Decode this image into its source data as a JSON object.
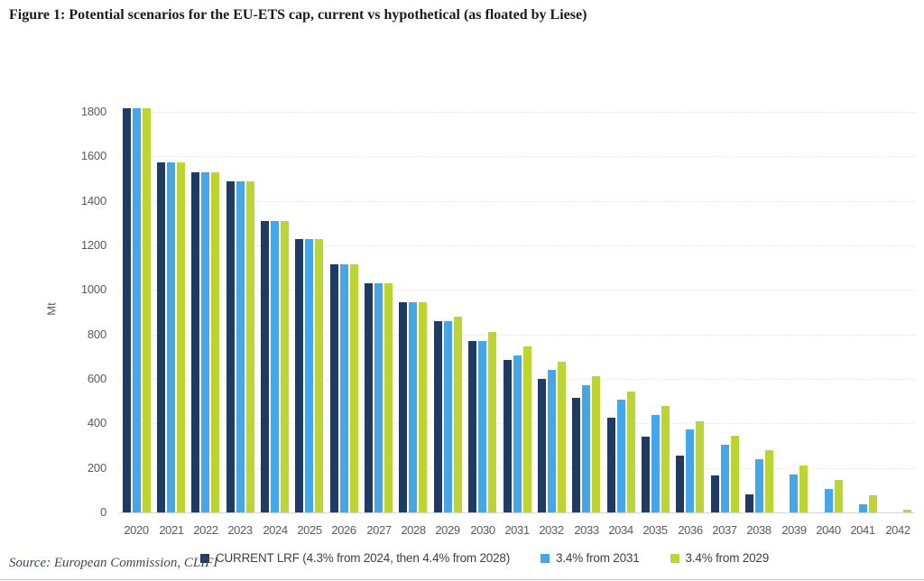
{
  "figure_title": "Figure 1: Potential scenarios for the EU-ETS cap, current vs hypothetical (as floated by Liese)",
  "source_note": "Source: European Commission, CLIFI",
  "colors": {
    "navy": "#1f3a63",
    "light_blue": "#45a7e8",
    "green": "#bcd532",
    "grid": "#e7e7e7",
    "axis_text": "#5a5a5a",
    "title_text": "#1b1b1b",
    "source_text": "#3d4a57"
  },
  "chart_data": {
    "type": "bar",
    "title": "Figure 1: Potential scenarios for the EU-ETS cap, current vs hypothetical (as floated by Liese)",
    "xlabel": "",
    "ylabel": "Mt",
    "ylim": [
      0,
      1800
    ],
    "ytick_step": 200,
    "yticks": [
      0,
      200,
      400,
      600,
      800,
      1000,
      1200,
      1400,
      1600,
      1800
    ],
    "grid": "horizontal-dotted",
    "legend_position": "bottom",
    "categories": [
      2020,
      2021,
      2022,
      2023,
      2024,
      2025,
      2026,
      2027,
      2028,
      2029,
      2030,
      2031,
      2032,
      2033,
      2034,
      2035,
      2036,
      2037,
      2038,
      2039,
      2040,
      2041,
      2042
    ],
    "series": [
      {
        "name": "CURRENT LRF (4.3% from 2024, then 4.4% from 2028)",
        "color": "#1f3a63",
        "values": [
          1816,
          1572,
          1530,
          1486,
          1311,
          1227,
          1116,
          1031,
          945,
          859,
          772,
          686,
          600,
          513,
          427,
          340,
          254,
          168,
          81,
          0,
          0,
          0,
          0
        ]
      },
      {
        "name": "3.4% from 2031",
        "color": "#45a7e8",
        "values": [
          1816,
          1572,
          1530,
          1486,
          1311,
          1227,
          1116,
          1031,
          945,
          859,
          772,
          706,
          639,
          572,
          505,
          439,
          372,
          305,
          238,
          172,
          105,
          38,
          0
        ]
      },
      {
        "name": "3.4% from 2029",
        "color": "#bcd532",
        "values": [
          1816,
          1572,
          1530,
          1486,
          1311,
          1227,
          1116,
          1031,
          945,
          878,
          812,
          745,
          678,
          611,
          545,
          478,
          411,
          345,
          278,
          211,
          144,
          78,
          11
        ]
      }
    ]
  }
}
